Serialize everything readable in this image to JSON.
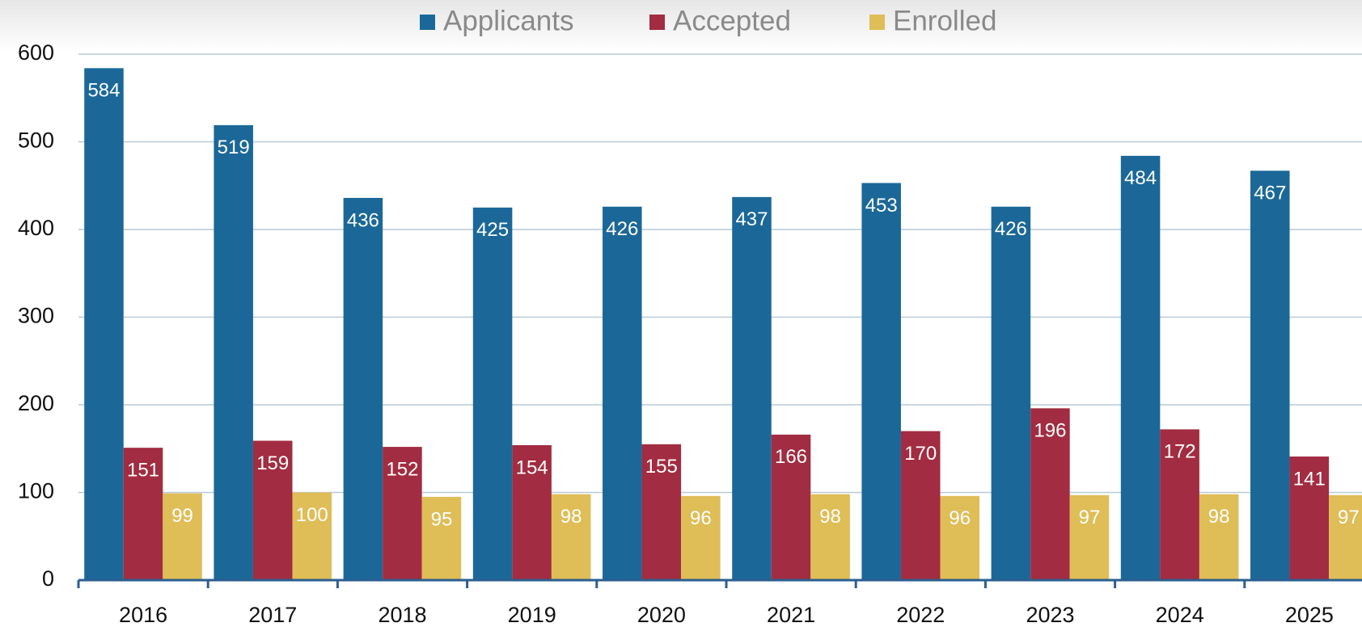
{
  "chart_data": {
    "type": "bar",
    "categories": [
      "2016",
      "2017",
      "2018",
      "2019",
      "2020",
      "2021",
      "2022",
      "2023",
      "2024",
      "2025"
    ],
    "series": [
      {
        "name": "Applicants",
        "color": "#1b6898",
        "values": [
          584,
          519,
          436,
          425,
          426,
          437,
          453,
          426,
          484,
          467
        ]
      },
      {
        "name": "Accepted",
        "color": "#a22c41",
        "values": [
          151,
          159,
          152,
          154,
          155,
          166,
          170,
          196,
          172,
          141
        ]
      },
      {
        "name": "Enrolled",
        "color": "#dfbd57",
        "values": [
          99,
          100,
          95,
          98,
          96,
          98,
          96,
          97,
          98,
          97
        ]
      }
    ],
    "ylim": [
      0,
      600
    ],
    "yticks": [
      0,
      100,
      200,
      300,
      400,
      500,
      600
    ],
    "grid": true,
    "legend": "top"
  }
}
